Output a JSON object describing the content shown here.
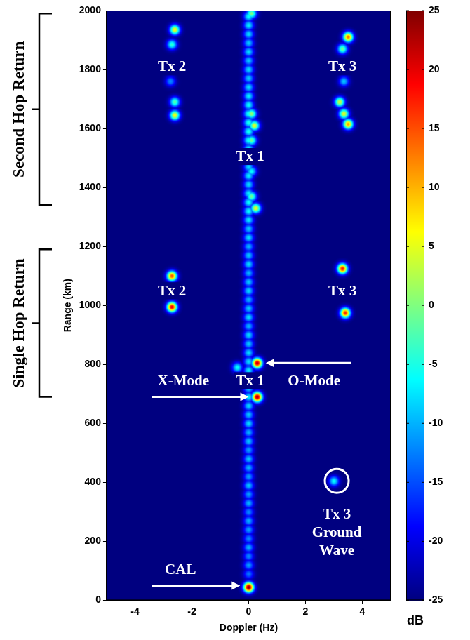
{
  "chart_data": {
    "type": "heatmap",
    "x_label": "Doppler (Hz)",
    "y_label": "Range (km)",
    "xlim": [
      -5,
      5
    ],
    "xticks": [
      -4,
      -2,
      0,
      2,
      4
    ],
    "ylim": [
      0,
      2000
    ],
    "yticks": [
      0,
      200,
      400,
      600,
      800,
      1000,
      1200,
      1400,
      1600,
      1800,
      2000
    ],
    "grid": false,
    "colorbar": {
      "label": "dB",
      "range": [
        -25,
        25
      ],
      "ticks": [
        -25,
        -20,
        -15,
        -10,
        -5,
        0,
        5,
        10,
        15,
        20,
        25
      ]
    },
    "cells": [
      [
        0,
        90,
        -13
      ],
      [
        0,
        120,
        -11
      ],
      [
        0,
        150,
        -12
      ],
      [
        0,
        180,
        -10
      ],
      [
        0,
        210,
        -12
      ],
      [
        0,
        240,
        -11
      ],
      [
        0,
        270,
        -10
      ],
      [
        0,
        300,
        -12
      ],
      [
        0,
        330,
        -10
      ],
      [
        0,
        360,
        -11
      ],
      [
        0,
        390,
        -9
      ],
      [
        0,
        420,
        -11
      ],
      [
        0,
        450,
        -10
      ],
      [
        0,
        480,
        -9
      ],
      [
        0,
        510,
        -11
      ],
      [
        0,
        540,
        -9
      ],
      [
        0,
        570,
        -10
      ],
      [
        0,
        600,
        -8
      ],
      [
        0,
        630,
        -9
      ],
      [
        0,
        660,
        -8
      ],
      [
        0,
        690,
        -7
      ],
      [
        0,
        720,
        -8
      ],
      [
        0,
        750,
        -8
      ],
      [
        0,
        780,
        -7
      ],
      [
        0,
        810,
        -8
      ],
      [
        0,
        840,
        -8
      ],
      [
        0,
        870,
        -9
      ],
      [
        0,
        900,
        -8
      ],
      [
        0,
        930,
        -10
      ],
      [
        0,
        960,
        -8
      ],
      [
        0,
        990,
        -9
      ],
      [
        0,
        1020,
        -10
      ],
      [
        0,
        1050,
        -8
      ],
      [
        0,
        1080,
        -9
      ],
      [
        0,
        1110,
        -10
      ],
      [
        0,
        1140,
        -8
      ],
      [
        0,
        1170,
        -9
      ],
      [
        0,
        1200,
        -10
      ],
      [
        0,
        1230,
        -8
      ],
      [
        0,
        1260,
        -9
      ],
      [
        0,
        1290,
        -7
      ],
      [
        0,
        1320,
        -6
      ],
      [
        0,
        1350,
        -6
      ],
      [
        0,
        1380,
        -7
      ],
      [
        0,
        1410,
        -8
      ],
      [
        0,
        1440,
        -7
      ],
      [
        0,
        1470,
        -8
      ],
      [
        0,
        1500,
        -7
      ],
      [
        0,
        1530,
        -6
      ],
      [
        0,
        1560,
        -5
      ],
      [
        0,
        1590,
        -5
      ],
      [
        0,
        1620,
        -5
      ],
      [
        0,
        1650,
        -5
      ],
      [
        0,
        1680,
        -6
      ],
      [
        0,
        1710,
        -7
      ],
      [
        0,
        1740,
        -8
      ],
      [
        0,
        1770,
        -9
      ],
      [
        0,
        1800,
        -8
      ],
      [
        0,
        1830,
        -9
      ],
      [
        0,
        1860,
        -8
      ],
      [
        0,
        1890,
        -9
      ],
      [
        0,
        1920,
        -8
      ],
      [
        0,
        1950,
        -7
      ],
      [
        0,
        1980,
        -6
      ],
      [
        -0.4,
        790,
        -6
      ],
      [
        3.0,
        405,
        -6
      ],
      [
        0.1,
        1455,
        -6
      ],
      [
        0.1,
        1370,
        -1
      ],
      [
        0.25,
        1330,
        5
      ],
      [
        0.1,
        1560,
        -1
      ],
      [
        0.1,
        1650,
        1
      ],
      [
        0.2,
        1610,
        5
      ],
      [
        0.1,
        1990,
        0
      ],
      [
        -2.75,
        1760,
        -12
      ],
      [
        -2.7,
        1885,
        -4
      ],
      [
        -2.6,
        1690,
        -2
      ],
      [
        -2.6,
        1935,
        6
      ],
      [
        -2.6,
        1645,
        6
      ],
      [
        3.35,
        1760,
        -9
      ],
      [
        3.3,
        1870,
        -1
      ],
      [
        3.2,
        1690,
        4
      ],
      [
        3.35,
        1650,
        5
      ],
      [
        3.5,
        1615,
        11
      ],
      [
        3.5,
        1910,
        13
      ],
      [
        -2.7,
        1100,
        15
      ],
      [
        3.4,
        975,
        17
      ],
      [
        3.3,
        1125,
        18
      ],
      [
        -2.7,
        995,
        20
      ],
      [
        0.3,
        805,
        22
      ],
      [
        0.3,
        690,
        23
      ],
      [
        0,
        45,
        25
      ]
    ],
    "annotations": [
      {
        "text": "Tx 2",
        "x": -2.7,
        "y": 1810
      },
      {
        "text": "Tx 3",
        "x": 3.3,
        "y": 1810
      },
      {
        "text": "Tx 1",
        "x": 0.05,
        "y": 1505
      },
      {
        "text": "Tx 2",
        "x": -2.7,
        "y": 1050
      },
      {
        "text": "Tx 3",
        "x": 3.3,
        "y": 1050
      },
      {
        "text": "Tx 1",
        "x": 0.05,
        "y": 745
      },
      {
        "text": "X-Mode",
        "x": -2.3,
        "y": 745,
        "arrow": {
          "from": [
            -3.4,
            690
          ],
          "to": [
            0.0,
            690
          ]
        }
      },
      {
        "text": "O-Mode",
        "x": 2.3,
        "y": 745,
        "arrow": {
          "from": [
            3.6,
            805
          ],
          "to": [
            0.6,
            805
          ]
        }
      },
      {
        "text": "CAL",
        "x": -2.4,
        "y": 105,
        "arrow": {
          "from": [
            -3.4,
            50
          ],
          "to": [
            -0.3,
            50
          ]
        }
      },
      {
        "text": [
          "Tx 3",
          "Ground",
          "Wave"
        ],
        "x": 3.1,
        "y": 292
      }
    ],
    "circles": [
      [
        3.1,
        405
      ]
    ],
    "brackets": [
      {
        "text": "Second Hop Return",
        "y": [
          1340,
          1990
        ]
      },
      {
        "text": "Single Hop Return",
        "y": [
          690,
          1190
        ]
      }
    ]
  }
}
